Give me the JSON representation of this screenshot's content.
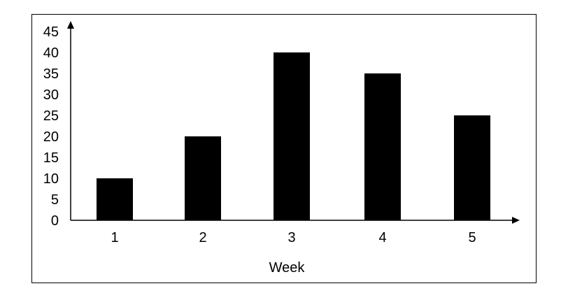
{
  "chart_data": {
    "type": "bar",
    "title": "",
    "xlabel": "Week",
    "ylabel": "",
    "categories": [
      "1",
      "2",
      "3",
      "4",
      "5"
    ],
    "values": [
      10,
      20,
      40,
      35,
      25
    ],
    "ylim": [
      0,
      45
    ],
    "yticks": [
      "0",
      "5",
      "10",
      "15",
      "20",
      "25",
      "30",
      "35",
      "40",
      "45"
    ],
    "grid": false,
    "legend": "none",
    "bar_color": "#000000"
  }
}
